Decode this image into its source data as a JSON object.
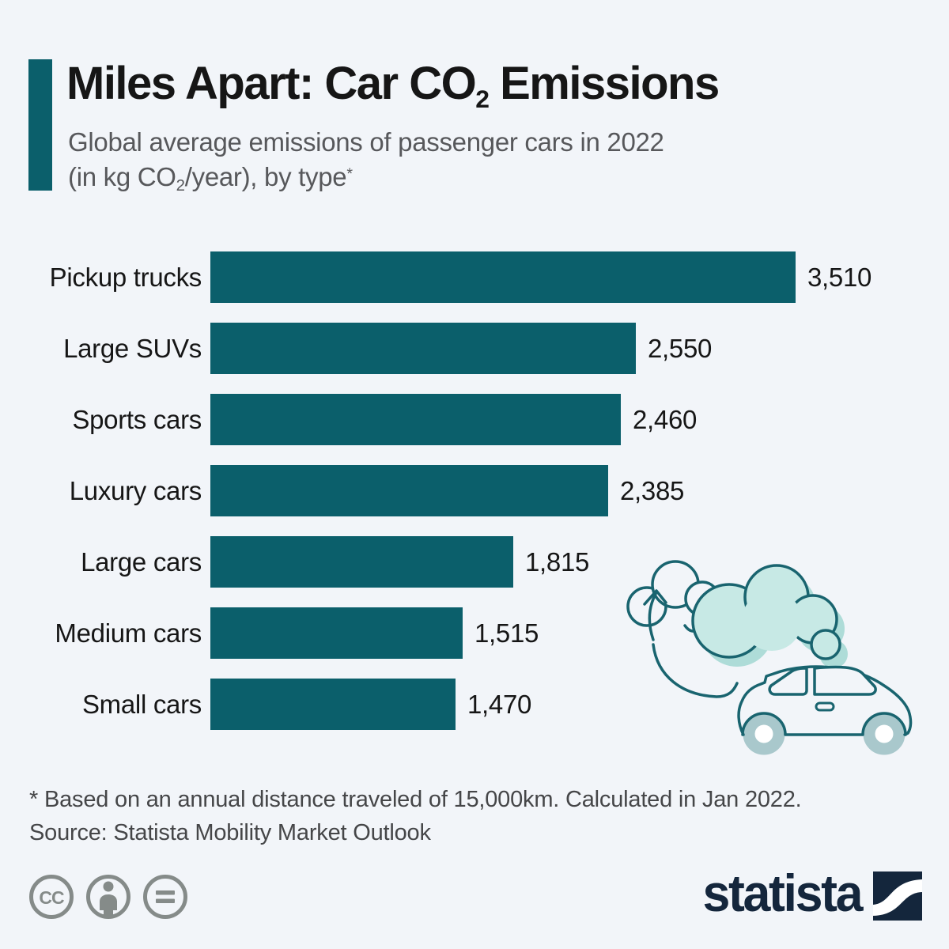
{
  "theme": {
    "accent": "#0b5f6b",
    "navy": "#14263c",
    "background": "#f2f5f9",
    "dark_text": "#161616",
    "gray_text": "#57585b",
    "license_gray": "#858b89",
    "cloud_fill": "#c7e9e5",
    "cloud_stroke": "#19646f",
    "wheel": "#a9c8cc"
  },
  "header": {
    "title_pre": "Miles Apart: Car CO",
    "title_sub": "2",
    "title_post": " Emissions",
    "subtitle_line1": "Global average emissions of passenger cars in 2022",
    "subtitle_line2_pre": "(in kg CO",
    "subtitle_line2_sub": "2",
    "subtitle_line2_post": "/year), by type",
    "subtitle_line2_sup": "*"
  },
  "chart_data": {
    "type": "bar",
    "orientation": "horizontal",
    "title": "Miles Apart: Car CO2 Emissions",
    "subtitle": "Global average emissions of passenger cars in 2022 (in kg CO2/year), by type*",
    "categories": [
      "Pickup trucks",
      "Large SUVs",
      "Sports cars",
      "Luxury cars",
      "Large cars",
      "Medium cars",
      "Small cars"
    ],
    "values": [
      3510,
      2550,
      2460,
      2385,
      1815,
      1515,
      1470
    ],
    "value_labels": [
      "3,510",
      "2,550",
      "2,460",
      "2,385",
      "1,815",
      "1,515",
      "1,470"
    ],
    "xlim": [
      0,
      3510
    ],
    "unit": "kg CO2/year",
    "bar_color": "#0b5f6b",
    "grid": false,
    "axis_labels_shown": false,
    "value_label_position": "outside-end"
  },
  "footer": {
    "footnote": "* Based on an annual distance traveled of 15,000km. Calculated in Jan 2022.",
    "source": "Source: Statista Mobility Market Outlook",
    "license_icons": [
      "cc-icon",
      "attribution-person-icon",
      "equals-icon"
    ],
    "brand_name": "statista"
  },
  "illustration": {
    "description": "car with exhaust clouds and upward arrow"
  }
}
